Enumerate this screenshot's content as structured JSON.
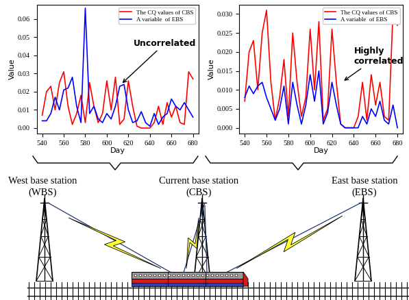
{
  "chart_data": [
    {
      "type": "line",
      "x_label": "Day",
      "y_label": "Value",
      "legend": "upper right",
      "annotations": [
        {
          "text": "Uncorrelated"
        }
      ],
      "x": [
        540,
        544,
        548,
        552,
        556,
        560,
        564,
        568,
        572,
        576,
        580,
        584,
        588,
        592,
        596,
        600,
        604,
        608,
        612,
        616,
        620,
        624,
        628,
        632,
        636,
        640,
        644,
        648,
        652,
        656,
        660,
        664,
        668,
        672,
        676,
        680
      ],
      "xlim": [
        535,
        685
      ],
      "xticks": [
        540,
        560,
        580,
        600,
        620,
        640,
        660,
        680
      ],
      "ylim": [
        -0.003,
        0.068
      ],
      "yticks": [
        {
          "value": 0.0,
          "label": "0.00"
        },
        {
          "value": 0.01,
          "label": "0.01"
        },
        {
          "value": 0.02,
          "label": "0.02"
        },
        {
          "value": 0.03,
          "label": "0.03"
        },
        {
          "value": 0.04,
          "label": "0.04"
        },
        {
          "value": 0.05,
          "label": "0.05"
        },
        {
          "value": 0.06,
          "label": "0.06"
        }
      ],
      "series": [
        {
          "name": "The CQ values of CBS",
          "color": "red",
          "values": [
            0.007,
            0.02,
            0.023,
            0.01,
            0.025,
            0.031,
            0.012,
            0.002,
            0.008,
            0.018,
            0.003,
            0.025,
            0.012,
            0.003,
            0.008,
            0.026,
            0.01,
            0.028,
            0.002,
            0.005,
            0.026,
            0.012,
            0.001,
            0.0,
            0.0,
            0.0,
            0.003,
            0.012,
            0.002,
            0.014,
            0.006,
            0.012,
            0.003,
            0.002,
            0.031,
            0.027
          ]
        },
        {
          "name": "A variable  of EBS",
          "color": "blue",
          "values": [
            0.004,
            0.004,
            0.008,
            0.017,
            0.01,
            0.021,
            0.022,
            0.028,
            0.012,
            0.003,
            0.066,
            0.008,
            0.012,
            0.005,
            0.003,
            0.008,
            0.005,
            0.012,
            0.023,
            0.024,
            0.01,
            0.003,
            0.004,
            0.009,
            0.003,
            0.001,
            0.008,
            0.002,
            0.006,
            0.008,
            0.016,
            0.012,
            0.01,
            0.014,
            0.01,
            0.006
          ]
        }
      ]
    },
    {
      "type": "line",
      "x_label": "Day",
      "y_label": "Value",
      "legend": "upper right",
      "annotations": [
        {
          "text": "Highly\ncorrelated"
        }
      ],
      "x": [
        540,
        544,
        548,
        552,
        556,
        560,
        564,
        568,
        572,
        576,
        580,
        584,
        588,
        592,
        596,
        600,
        604,
        608,
        612,
        616,
        620,
        624,
        628,
        632,
        636,
        640,
        644,
        648,
        652,
        656,
        660,
        664,
        668,
        672,
        676,
        680
      ],
      "xlim": [
        535,
        685
      ],
      "xticks": [
        540,
        560,
        580,
        600,
        620,
        640,
        660,
        680
      ],
      "ylim": [
        -0.0015,
        0.0325
      ],
      "yticks": [
        {
          "value": 0.0,
          "label": "0.000"
        },
        {
          "value": 0.005,
          "label": "0.005"
        },
        {
          "value": 0.01,
          "label": "0.010"
        },
        {
          "value": 0.015,
          "label": "0.015"
        },
        {
          "value": 0.02,
          "label": "0.020"
        },
        {
          "value": 0.025,
          "label": "0.025"
        },
        {
          "value": 0.03,
          "label": "0.030"
        }
      ],
      "series": [
        {
          "name": "The CQ values of CBS",
          "color": "red",
          "values": [
            0.007,
            0.02,
            0.023,
            0.01,
            0.025,
            0.031,
            0.012,
            0.002,
            0.008,
            0.018,
            0.003,
            0.025,
            0.012,
            0.003,
            0.008,
            0.026,
            0.01,
            0.028,
            0.002,
            0.005,
            0.026,
            0.012,
            0.001,
            0.0,
            0.0,
            0.0,
            0.003,
            0.012,
            0.002,
            0.014,
            0.006,
            0.012,
            0.003,
            0.002,
            0.031,
            0.027
          ]
        },
        {
          "name": "A variable  of EBS",
          "color": "blue",
          "values": [
            0.008,
            0.011,
            0.009,
            0.011,
            0.012,
            0.008,
            0.005,
            0.002,
            0.005,
            0.011,
            0.001,
            0.012,
            0.006,
            0.001,
            0.006,
            0.014,
            0.007,
            0.015,
            0.001,
            0.004,
            0.012,
            0.006,
            0.001,
            0.0,
            0.0,
            0.0,
            0.0,
            0.003,
            0.001,
            0.005,
            0.003,
            0.007,
            0.002,
            0.001,
            0.006,
            0.0
          ]
        }
      ]
    }
  ],
  "diagram": {
    "stations": [
      {
        "label": "West base station\n(WBS)"
      },
      {
        "label": "Current base station\n(CBS)"
      },
      {
        "label": "East base station\n(EBS)"
      }
    ]
  }
}
